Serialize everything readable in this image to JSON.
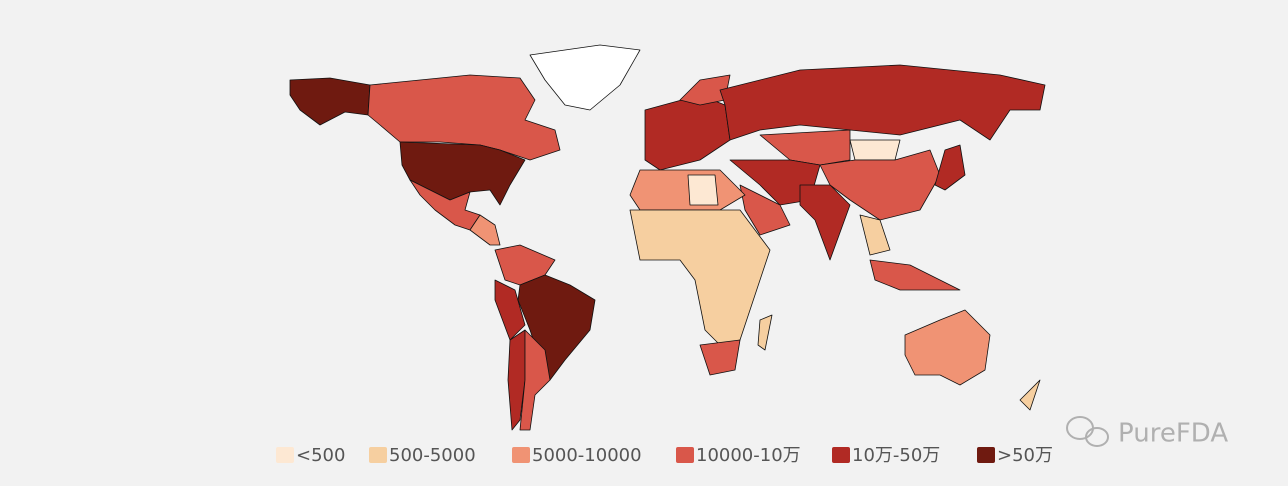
{
  "legend": [
    {
      "label": "<500",
      "color": "#fde8d3"
    },
    {
      "label": "500-5000",
      "color": "#f6cfa0"
    },
    {
      "label": "5000-10000",
      "color": "#f09374"
    },
    {
      "label": "10000-10万",
      "color": "#d9574a"
    },
    {
      "label": "10万-50万",
      "color": "#b12a24"
    },
    {
      "label": ">50万",
      "color": "#6f1a10"
    }
  ],
  "watermark": "PureFDA"
}
